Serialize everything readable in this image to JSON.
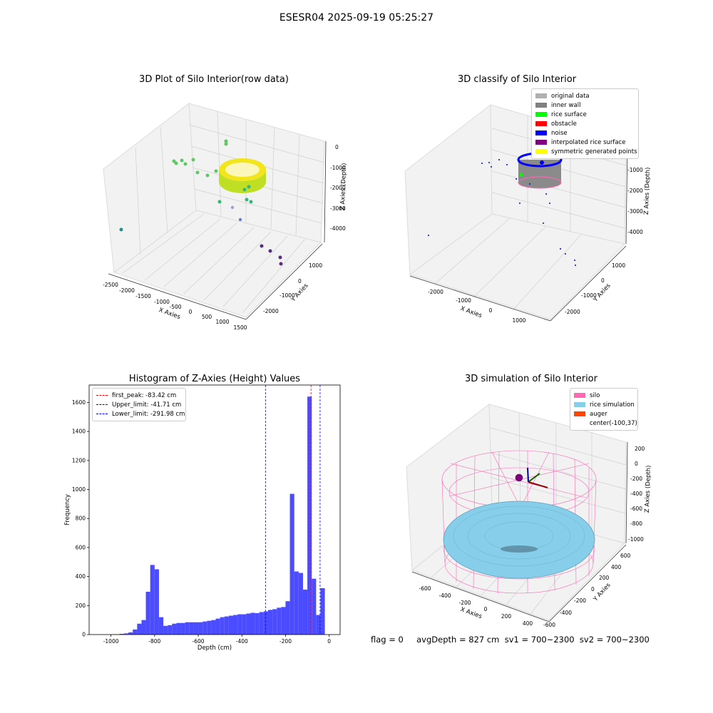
{
  "figure_title": "ESESR04 2025-09-19 05:25:27",
  "status": {
    "text": "flag = 0     avgDepth = 827 cm  sv1 = 700~2300  sv2 = 700~2300"
  },
  "colors": {
    "histogram": "#4b4bff",
    "first_peak": "#ff0000",
    "limits": "#0000ff",
    "silo": "#ff69b4",
    "rice": "#87ceeb",
    "auger": "#ff4500"
  },
  "chart_data": [
    {
      "type": "scatter",
      "projection": "3d",
      "title": "3D Plot of Silo Interior(row data)",
      "xlabel": "X Axies",
      "ylabel": "Y Axies",
      "zlabel": "Z Axies (Depth)",
      "xticks": [
        "-2500",
        "-2000",
        "-1500",
        "-1000",
        "-500",
        "0",
        "500",
        "1000",
        "1500"
      ],
      "yticks": [
        "1000",
        "0",
        "-1000",
        "-2000"
      ],
      "zticks": [
        "0",
        "-1000",
        "-2000",
        "-3000",
        "-4000"
      ],
      "colormap": "viridis"
    },
    {
      "type": "scatter",
      "projection": "3d",
      "title": "3D classify of Silo Interior",
      "xlabel": "X Axies",
      "ylabel": "Y Axies",
      "zlabel": "Z Axies (Depth)",
      "xticks": [
        "-2000",
        "-1000",
        "0",
        "1000"
      ],
      "yticks": [
        "1000",
        "0",
        "-1000",
        "-2000"
      ],
      "zticks": [
        "0",
        "-1000",
        "-2000",
        "-3000",
        "-4000"
      ],
      "legend": [
        {
          "label": "original data",
          "color": "#b0b0b0"
        },
        {
          "label": "inner wall",
          "color": "#808080"
        },
        {
          "label": "rice surface",
          "color": "#00ff00"
        },
        {
          "label": "obstacle",
          "color": "#ff0000"
        },
        {
          "label": "noise",
          "color": "#0000ff"
        },
        {
          "label": "interpolated rice surface",
          "color": "#800080"
        },
        {
          "label": "symmetric generated points",
          "color": "#ffff00"
        }
      ]
    },
    {
      "type": "bar",
      "title": "Histogram of Z-Axies (Height) Values",
      "xlabel": "Depth (cm)",
      "ylabel": "Frequency",
      "xlim": [
        -1100,
        50
      ],
      "ylim": [
        0,
        1720
      ],
      "xticks": [
        -1000,
        -800,
        -600,
        -400,
        -200,
        0
      ],
      "yticks": [
        0,
        200,
        400,
        600,
        800,
        1000,
        1200,
        1400,
        1600
      ],
      "bin_width": 20,
      "bins": [
        [
          -1000,
          1
        ],
        [
          -980,
          2
        ],
        [
          -960,
          5
        ],
        [
          -940,
          8
        ],
        [
          -920,
          15
        ],
        [
          -900,
          35
        ],
        [
          -880,
          75
        ],
        [
          -860,
          100
        ],
        [
          -840,
          295
        ],
        [
          -820,
          480
        ],
        [
          -800,
          450
        ],
        [
          -780,
          120
        ],
        [
          -760,
          60
        ],
        [
          -740,
          65
        ],
        [
          -720,
          75
        ],
        [
          -700,
          80
        ],
        [
          -680,
          80
        ],
        [
          -660,
          85
        ],
        [
          -640,
          85
        ],
        [
          -620,
          85
        ],
        [
          -600,
          85
        ],
        [
          -580,
          90
        ],
        [
          -560,
          95
        ],
        [
          -540,
          100
        ],
        [
          -520,
          110
        ],
        [
          -500,
          120
        ],
        [
          -480,
          125
        ],
        [
          -460,
          130
        ],
        [
          -440,
          135
        ],
        [
          -420,
          140
        ],
        [
          -400,
          140
        ],
        [
          -380,
          145
        ],
        [
          -360,
          150
        ],
        [
          -340,
          148
        ],
        [
          -320,
          155
        ],
        [
          -300,
          160
        ],
        [
          -280,
          170
        ],
        [
          -260,
          175
        ],
        [
          -240,
          185
        ],
        [
          -220,
          190
        ],
        [
          -200,
          230
        ],
        [
          -180,
          970
        ],
        [
          -160,
          435
        ],
        [
          -140,
          425
        ],
        [
          -120,
          310
        ],
        [
          -100,
          1640
        ],
        [
          -80,
          385
        ],
        [
          -60,
          135
        ],
        [
          -40,
          320
        ]
      ],
      "lines": [
        {
          "label": "first_peak: -83.42 cm",
          "value": -83.42,
          "color": "#ff0000"
        },
        {
          "label": "Upper_limit: -41.71 cm",
          "value": -41.71,
          "color": "#0000ff"
        },
        {
          "label": "Lower_limit: -291.98 cm",
          "value": -291.98,
          "color": "#0000ff"
        }
      ]
    },
    {
      "type": "surface",
      "projection": "3d",
      "title": "3D simulation of Silo Interior",
      "xlabel": "X Axies",
      "ylabel": "Y Axies",
      "zlabel": "Z Axies (Depth)",
      "xticks": [
        "-600",
        "-400",
        "-200",
        "0",
        "200",
        "400"
      ],
      "yticks": [
        "600",
        "400",
        "200",
        "0",
        "-200",
        "-400",
        "-600"
      ],
      "zticks": [
        "200",
        "0",
        "-200",
        "-400",
        "-600",
        "-800",
        "-1000"
      ],
      "legend": [
        {
          "label": "silo",
          "color": "#ff69b4"
        },
        {
          "label": "rice simulation",
          "color": "#87ceeb"
        },
        {
          "label": "auger",
          "color": "#ff4500"
        },
        {
          "label": "center(-100,37)",
          "color": ""
        }
      ]
    }
  ]
}
